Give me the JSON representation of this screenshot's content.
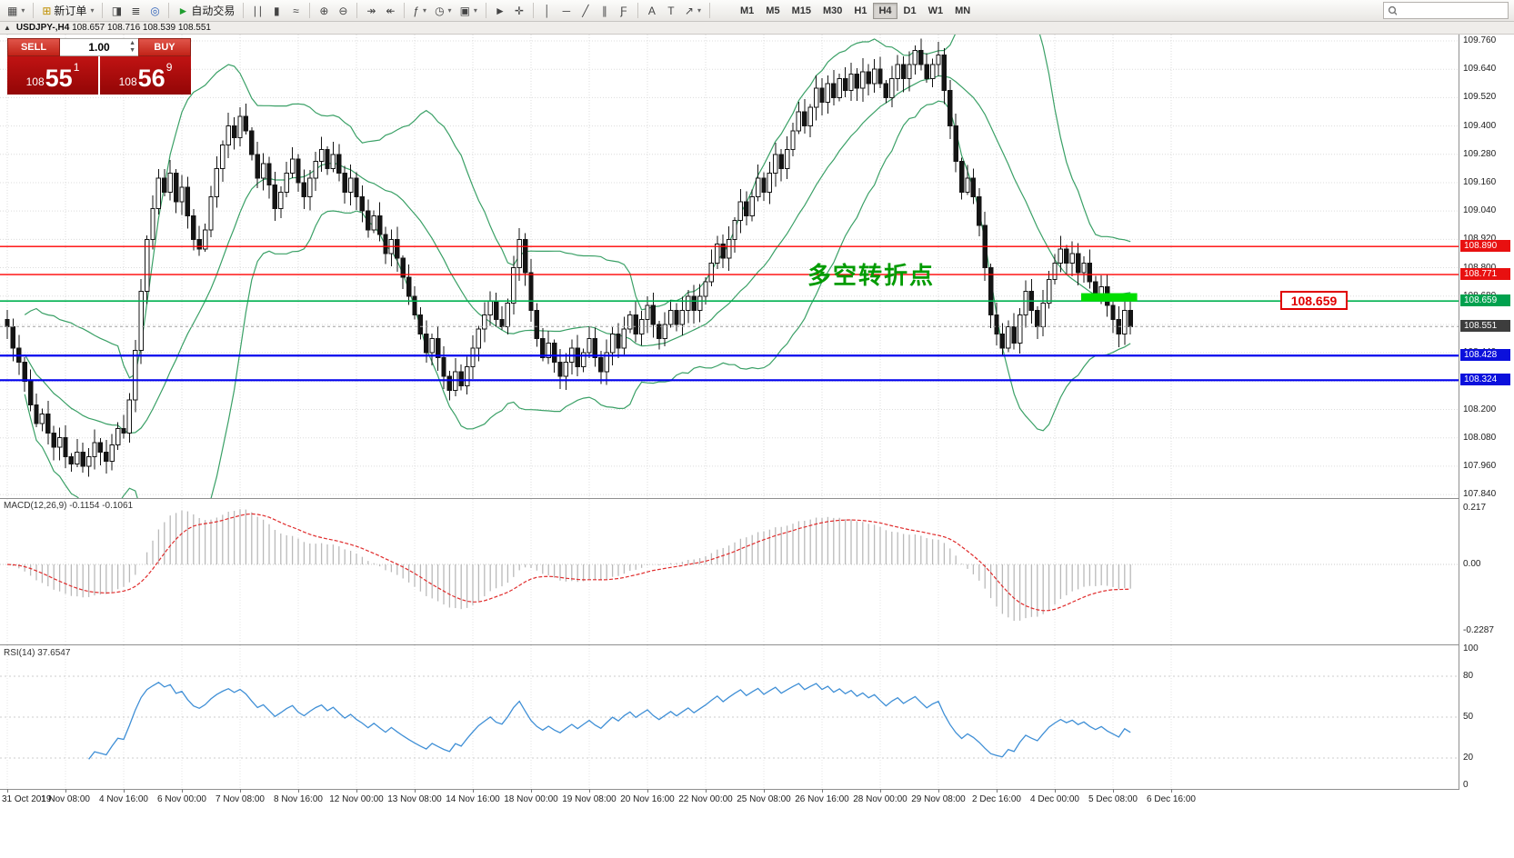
{
  "toolbar": {
    "caret_glyph": "▾",
    "groups": [
      {
        "items": [
          {
            "name": "new-chart-button",
            "icon": "chart-window-icon",
            "glyph": "▦",
            "caret": true
          }
        ]
      },
      {
        "items": [
          {
            "name": "new-order-button",
            "icon": "new-order-icon",
            "glyph": "⊞",
            "color": "#bf8f00",
            "label": "新订单",
            "caret": true
          }
        ]
      },
      {
        "items": [
          {
            "name": "chart-profiles-button",
            "icon": "profiles-icon",
            "glyph": "◨"
          },
          {
            "name": "print-button",
            "icon": "print-icon",
            "glyph": "≣"
          },
          {
            "name": "history-center-button",
            "icon": "history-icon",
            "glyph": "◎",
            "color": "#2d61b8"
          }
        ]
      },
      {
        "items": [
          {
            "name": "autotrading-button",
            "icon": "autotrading-icon",
            "glyph": "►",
            "color": "#1f9d2f",
            "label": "自动交易"
          }
        ]
      },
      {
        "items": [
          {
            "name": "bar-chart-button",
            "icon": "bar-chart-icon",
            "glyph": "∣∣"
          },
          {
            "name": "candlestick-chart-button",
            "icon": "candlestick-icon",
            "glyph": "▮"
          },
          {
            "name": "line-chart-button",
            "icon": "line-chart-icon",
            "glyph": "≈"
          }
        ]
      },
      {
        "items": [
          {
            "name": "zoom-in-button",
            "icon": "zoom-in-icon",
            "glyph": "⊕"
          },
          {
            "name": "zoom-out-button",
            "icon": "zoom-out-icon",
            "glyph": "⊖"
          }
        ]
      },
      {
        "items": [
          {
            "name": "auto-scroll-button",
            "icon": "auto-scroll-icon",
            "glyph": "↠"
          },
          {
            "name": "chart-shift-button",
            "icon": "chart-shift-icon",
            "glyph": "↞"
          }
        ]
      },
      {
        "items": [
          {
            "name": "indicators-button",
            "icon": "indicators-icon",
            "glyph": "ƒ",
            "caret": true
          },
          {
            "name": "periods-button",
            "icon": "periods-icon",
            "glyph": "◷",
            "caret": true
          },
          {
            "name": "templates-button",
            "icon": "templates-icon",
            "glyph": "▣",
            "caret": true
          }
        ]
      },
      {
        "items": [
          {
            "name": "cursor-button",
            "icon": "cursor-icon",
            "glyph": "►"
          },
          {
            "name": "crosshair-button",
            "icon": "crosshair-icon",
            "glyph": "✛"
          }
        ]
      },
      {
        "items": [
          {
            "name": "vertical-line-button",
            "icon": "vertical-line-icon",
            "glyph": "│"
          },
          {
            "name": "horizontal-line-button",
            "icon": "horizontal-line-icon",
            "glyph": "─"
          },
          {
            "name": "trendline-button",
            "icon": "trendline-icon",
            "glyph": "╱"
          },
          {
            "name": "equidistant-channel-button",
            "icon": "channel-icon",
            "glyph": "∥"
          },
          {
            "name": "fibonacci-button",
            "icon": "fibonacci-icon",
            "glyph": "Ƒ"
          }
        ]
      },
      {
        "items": [
          {
            "name": "text-button",
            "icon": "text-icon",
            "glyph": "A"
          },
          {
            "name": "text-label-button",
            "icon": "text-label-icon",
            "glyph": "T"
          },
          {
            "name": "arrows-button",
            "icon": "arrow-objects-icon",
            "glyph": "↗",
            "caret": true
          }
        ]
      }
    ],
    "timeframes": [
      {
        "label": "M1"
      },
      {
        "label": "M5"
      },
      {
        "label": "M15"
      },
      {
        "label": "M30"
      },
      {
        "label": "H1"
      },
      {
        "label": "H4",
        "active": true
      },
      {
        "label": "D1"
      },
      {
        "label": "W1"
      },
      {
        "label": "MN"
      }
    ],
    "search_placeholder": ""
  },
  "chart_header": {
    "toggle_glyph": "▲",
    "symbol_period": "USDJPY-,H4",
    "ohlc": "108.657 108.716 108.539 108.551"
  },
  "one_click": {
    "sell_label": "SELL",
    "buy_label": "BUY",
    "volume": "1.00",
    "bid_prefix": "108",
    "bid_main": "55",
    "bid_sup": "1",
    "ask_prefix": "108",
    "ask_main": "56",
    "ask_sup": "9"
  },
  "chart_data": {
    "type": "candlestick",
    "symbol": "USDJPY-",
    "timeframe": "H4",
    "last_bar": {
      "open": 108.657,
      "high": 108.716,
      "low": 108.539,
      "close": 108.551
    },
    "current_price": 108.551,
    "ylim": [
      107.825,
      109.787
    ],
    "y_ticks": [
      "109.760",
      "109.640",
      "109.520",
      "109.400",
      "109.280",
      "109.160",
      "109.040",
      "108.920",
      "108.800",
      "108.680",
      "108.560",
      "108.440",
      "108.320",
      "108.200",
      "108.080",
      "107.960",
      "107.840"
    ],
    "x_labels": [
      "31 Oct 2019",
      "1 Nov 08:00",
      "4 Nov 16:00",
      "6 Nov 00:00",
      "7 Nov 08:00",
      "8 Nov 16:00",
      "12 Nov 00:00",
      "13 Nov 08:00",
      "14 Nov 16:00",
      "18 Nov 00:00",
      "19 Nov 08:00",
      "20 Nov 16:00",
      "22 Nov 00:00",
      "25 Nov 08:00",
      "26 Nov 16:00",
      "28 Nov 00:00",
      "29 Nov 08:00",
      "2 Dec 16:00",
      "4 Dec 00:00",
      "5 Dec 08:00",
      "6 Dec 16:00"
    ],
    "closes": [
      108.55,
      108.46,
      108.4,
      108.32,
      108.22,
      108.14,
      108.18,
      108.1,
      108.04,
      108.08,
      108.0,
      107.97,
      108.02,
      107.96,
      108.0,
      108.06,
      108.02,
      107.98,
      108.05,
      108.12,
      108.1,
      108.24,
      108.45,
      108.7,
      108.92,
      109.05,
      109.18,
      109.12,
      109.2,
      109.08,
      109.14,
      109.02,
      108.92,
      108.88,
      108.96,
      109.1,
      109.22,
      109.32,
      109.4,
      109.35,
      109.44,
      109.38,
      109.28,
      109.18,
      109.24,
      109.15,
      109.05,
      109.12,
      109.2,
      109.26,
      109.16,
      109.1,
      109.18,
      109.25,
      109.3,
      109.22,
      109.28,
      109.2,
      109.12,
      109.18,
      109.1,
      109.04,
      108.96,
      109.02,
      108.94,
      108.86,
      108.92,
      108.84,
      108.76,
      108.68,
      108.6,
      108.52,
      108.44,
      108.5,
      108.42,
      108.34,
      108.28,
      108.36,
      108.3,
      108.38,
      108.46,
      108.54,
      108.6,
      108.66,
      108.58,
      108.55,
      108.65,
      108.8,
      108.92,
      108.78,
      108.62,
      108.5,
      108.42,
      108.48,
      108.4,
      108.34,
      108.4,
      108.46,
      108.38,
      108.44,
      108.5,
      108.42,
      108.36,
      108.44,
      108.52,
      108.46,
      108.54,
      108.6,
      108.52,
      108.58,
      108.64,
      108.56,
      108.5,
      108.56,
      108.62,
      108.56,
      108.62,
      108.68,
      108.62,
      108.68,
      108.74,
      108.82,
      108.9,
      108.84,
      108.92,
      109.0,
      109.08,
      109.02,
      109.1,
      109.18,
      109.12,
      109.2,
      109.28,
      109.22,
      109.3,
      109.38,
      109.46,
      109.4,
      109.48,
      109.56,
      109.5,
      109.58,
      109.52,
      109.6,
      109.55,
      109.62,
      109.56,
      109.63,
      109.58,
      109.64,
      109.58,
      109.52,
      109.6,
      109.66,
      109.6,
      109.66,
      109.72,
      109.66,
      109.6,
      109.66,
      109.7,
      109.55,
      109.4,
      109.25,
      109.12,
      109.18,
      109.1,
      108.98,
      108.8,
      108.6,
      108.52,
      108.46,
      108.55,
      108.48,
      108.6,
      108.7,
      108.62,
      108.55,
      108.65,
      108.75,
      108.82,
      108.88,
      108.82,
      108.86,
      108.78,
      108.82,
      108.74,
      108.68,
      108.72,
      108.64,
      108.58,
      108.52,
      108.62,
      108.551
    ],
    "bollinger": {
      "period": 20,
      "deviation": 2,
      "color": "#3aa066"
    },
    "horizontal_lines": [
      {
        "price": 108.89,
        "color": "#ff0000",
        "width": 1.4
      },
      {
        "price": 108.771,
        "color": "#ff0000",
        "width": 1.4
      },
      {
        "price": 108.659,
        "color": "#00b050",
        "width": 1.6
      },
      {
        "price": 108.428,
        "color": "#0000ee",
        "width": 2.2
      },
      {
        "price": 108.324,
        "color": "#0000ee",
        "width": 2.2
      }
    ],
    "price_tags": [
      {
        "text": "108.890",
        "bg": "#e81010"
      },
      {
        "text": "108.771",
        "bg": "#e81010"
      },
      {
        "text": "108.659",
        "bg": "#00a14e"
      },
      {
        "text": "108.551",
        "bg": "#3d3d3d"
      },
      {
        "text": "108.428",
        "bg": "#0b10dc"
      },
      {
        "text": "108.324",
        "bg": "#0b10dc"
      }
    ],
    "annotation": {
      "text": "多空转折点",
      "color": "#009b00",
      "price": 108.72
    },
    "callout": {
      "text": "108.659"
    },
    "highlight_marker": {
      "price": 108.675,
      "bar_start": 185,
      "bar_count": 9,
      "color": "#00dd00"
    },
    "macd": {
      "label": "MACD(12,26,9) -0.1154 -0.1061",
      "fast": 12,
      "slow": 26,
      "signal": 9,
      "value": -0.1154,
      "signal_value": -0.1061,
      "axis_labels": [
        "0.217",
        "0.00",
        "-0.2287"
      ],
      "histogram_color": "#b9b9b9",
      "signal_color": "#e02c2c"
    },
    "rsi": {
      "label": "RSI(14) 37.6547",
      "period": 14,
      "value": 37.6547,
      "levels": [
        80,
        50,
        20
      ],
      "axis_labels": [
        "100",
        "80",
        "50",
        "20",
        "0"
      ],
      "color": "#3f8fd6"
    },
    "colors": {
      "grid": "#dcdcdc",
      "bull": "#ffffff",
      "bear": "#141414",
      "candle_border": "#141414"
    }
  }
}
